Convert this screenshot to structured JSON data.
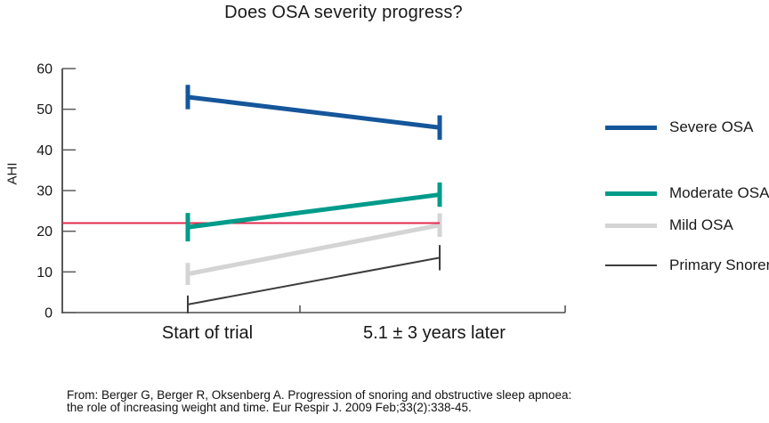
{
  "chart_data": {
    "type": "line",
    "title": "Does OSA severity progress?",
    "ylabel": "AHI",
    "xlabel": "",
    "ylim": [
      0,
      60
    ],
    "yticks": [
      0,
      10,
      20,
      30,
      40,
      50,
      60
    ],
    "categories": [
      "Start of trial",
      "5.1 ± 3 years later"
    ],
    "grid": false,
    "legend_position": "right",
    "reference_line": {
      "value": 22,
      "color": "#e32b4f"
    },
    "series": [
      {
        "name": "Severe OSA",
        "color": "#15569b",
        "line_width": 5,
        "values": [
          53,
          45.5
        ],
        "errors": [
          3,
          3
        ]
      },
      {
        "name": "Moderate OSA",
        "color": "#009b8a",
        "line_width": 5,
        "values": [
          21,
          29
        ],
        "errors": [
          3.5,
          3
        ]
      },
      {
        "name": "Mild OSA",
        "color": "#d4d4d4",
        "line_width": 5,
        "values": [
          9.5,
          21.5
        ],
        "errors": [
          2.7,
          2.9
        ]
      },
      {
        "name": "Primary Snorers",
        "color": "#3d3d3d",
        "line_width": 2,
        "values": [
          2,
          13.5
        ],
        "errors": [
          2.2,
          3.1
        ]
      }
    ]
  },
  "citation": {
    "line1": "From: Berger G, Berger R, Oksenberg A. Progression of snoring and obstructive sleep apnoea:",
    "line2": "the role of increasing weight and time. Eur Respir J. 2009 Feb;33(2):338-45."
  }
}
